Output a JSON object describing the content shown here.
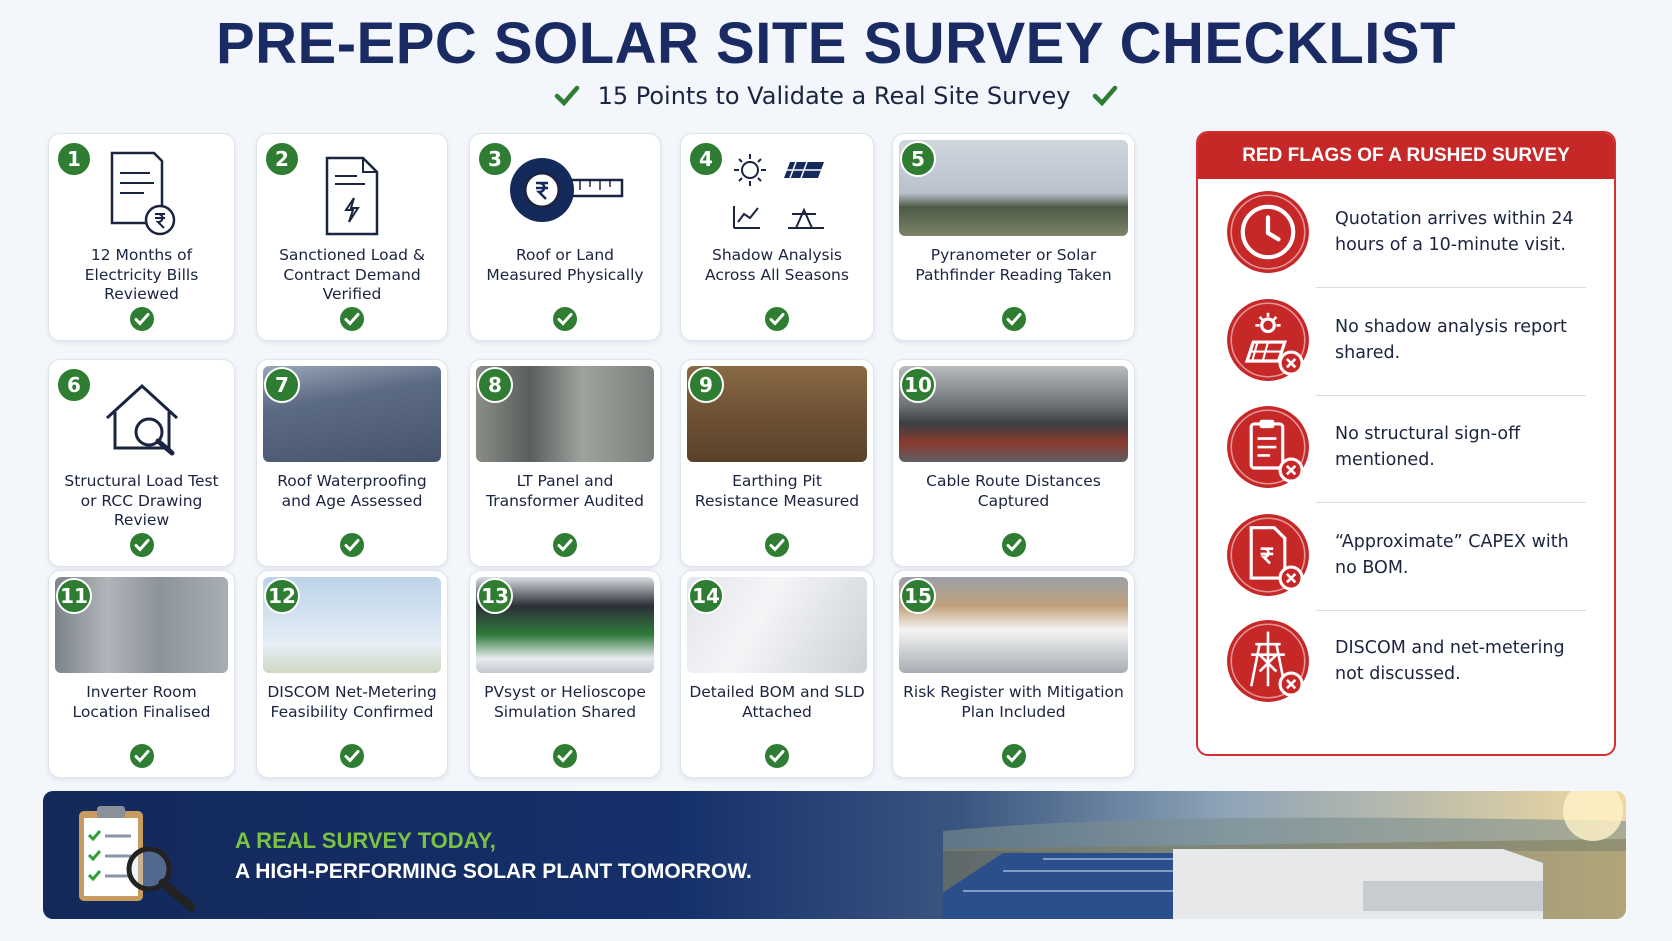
{
  "header": {
    "title": "PRE-EPC SOLAR SITE SURVEY CHECKLIST",
    "subtitle": "15 Points to Validate a Real Site Survey"
  },
  "items": [
    {
      "number": "1",
      "label": "12 Months of Electricity Bills Reviewed"
    },
    {
      "number": "2",
      "label": "Sanctioned Load & Contract Demand Verified"
    },
    {
      "number": "3",
      "label": "Roof or Land Measured Physically"
    },
    {
      "number": "4",
      "label": "Shadow Analysis Across All Seasons"
    },
    {
      "number": "5",
      "label": "Pyranometer or Solar Pathfinder Reading Taken"
    },
    {
      "number": "6",
      "label": "Structural Load Test or RCC Drawing Review"
    },
    {
      "number": "7",
      "label": "Roof Waterproofing and Age Assessed"
    },
    {
      "number": "8",
      "label": "LT Panel and Transformer Audited"
    },
    {
      "number": "9",
      "label": "Earthing Pit Resistance Measured"
    },
    {
      "number": "10",
      "label": "Cable Route Distances Captured"
    },
    {
      "number": "11",
      "label": "Inverter Room Location Finalised"
    },
    {
      "number": "12",
      "label": "DISCOM Net-Metering Feasibility Confirmed"
    },
    {
      "number": "13",
      "label": "PVsyst or Helioscope Simulation Shared"
    },
    {
      "number": "14",
      "label": "Detailed BOM and SLD Attached"
    },
    {
      "number": "15",
      "label": "Risk Register with Mitigation Plan Included"
    }
  ],
  "red_flags": {
    "title": "RED FLAGS OF A RUSHED SURVEY",
    "items": [
      "Quotation arrives within 24 hours of a 10-minute visit.",
      "No shadow analysis report shared.",
      "No structural sign-off mentioned.",
      "“Approximate” CAPEX with no BOM.",
      "DISCOM and net-metering not discussed."
    ]
  },
  "banner": {
    "line1": "A REAL SURVEY TODAY,",
    "line2": "A HIGH-PERFORMING SOLAR PLANT TOMORROW."
  }
}
